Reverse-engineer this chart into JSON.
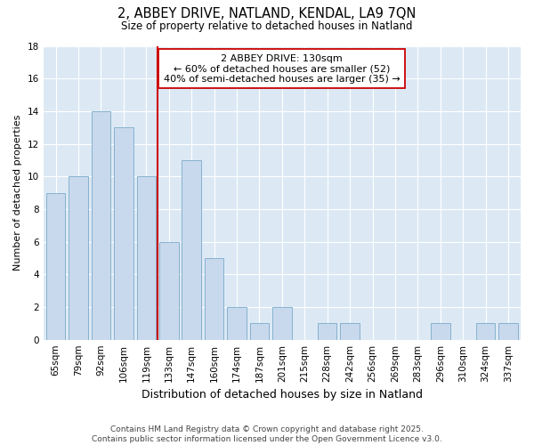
{
  "title": "2, ABBEY DRIVE, NATLAND, KENDAL, LA9 7QN",
  "subtitle": "Size of property relative to detached houses in Natland",
  "xlabel": "Distribution of detached houses by size in Natland",
  "ylabel": "Number of detached properties",
  "categories": [
    "65sqm",
    "79sqm",
    "92sqm",
    "106sqm",
    "119sqm",
    "133sqm",
    "147sqm",
    "160sqm",
    "174sqm",
    "187sqm",
    "201sqm",
    "215sqm",
    "228sqm",
    "242sqm",
    "256sqm",
    "269sqm",
    "283sqm",
    "296sqm",
    "310sqm",
    "324sqm",
    "337sqm"
  ],
  "values": [
    9,
    10,
    14,
    13,
    10,
    6,
    11,
    5,
    2,
    1,
    2,
    0,
    1,
    1,
    0,
    0,
    0,
    1,
    0,
    1,
    1
  ],
  "bar_color": "#c9d9ed",
  "bar_edge_color": "#7aaac8",
  "vline_x": 4.5,
  "vline_color": "#cc0000",
  "annotation_text": "2 ABBEY DRIVE: 130sqm\n← 60% of detached houses are smaller (52)\n40% of semi-detached houses are larger (35) →",
  "annotation_box_color": "#ffffff",
  "annotation_box_edge": "#cc0000",
  "ylim": [
    0,
    18
  ],
  "yticks": [
    0,
    2,
    4,
    6,
    8,
    10,
    12,
    14,
    16,
    18
  ],
  "fig_bg_color": "#ffffff",
  "plot_bg_color": "#dce9f5",
  "footer_text": "Contains HM Land Registry data © Crown copyright and database right 2025.\nContains public sector information licensed under the Open Government Licence v3.0.",
  "title_fontsize": 10.5,
  "subtitle_fontsize": 8.5,
  "xlabel_fontsize": 9,
  "ylabel_fontsize": 8,
  "tick_fontsize": 7.5,
  "annotation_fontsize": 8,
  "footer_fontsize": 6.5
}
